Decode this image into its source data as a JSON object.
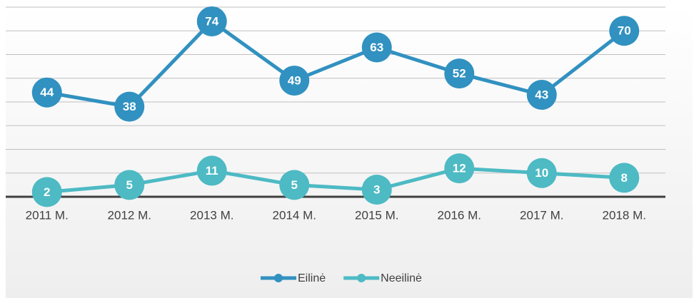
{
  "chart_data": {
    "type": "line",
    "categories": [
      "2011 M.",
      "2012 M.",
      "2013 M.",
      "2014 M.",
      "2015 M.",
      "2016 M.",
      "2017 M.",
      "2018 M."
    ],
    "series": [
      {
        "name": "Eilinė",
        "color": "#3191c0",
        "values": [
          44,
          38,
          74,
          49,
          63,
          52,
          43,
          70
        ]
      },
      {
        "name": "Neeilinė",
        "color": "#4dbac4",
        "values": [
          2,
          5,
          11,
          5,
          3,
          12,
          10,
          8
        ]
      }
    ],
    "ylim": [
      0,
      80
    ],
    "yticks": [
      0,
      10,
      20,
      30,
      40,
      50,
      60,
      70,
      80
    ],
    "grid": true,
    "legend": "bottom"
  }
}
